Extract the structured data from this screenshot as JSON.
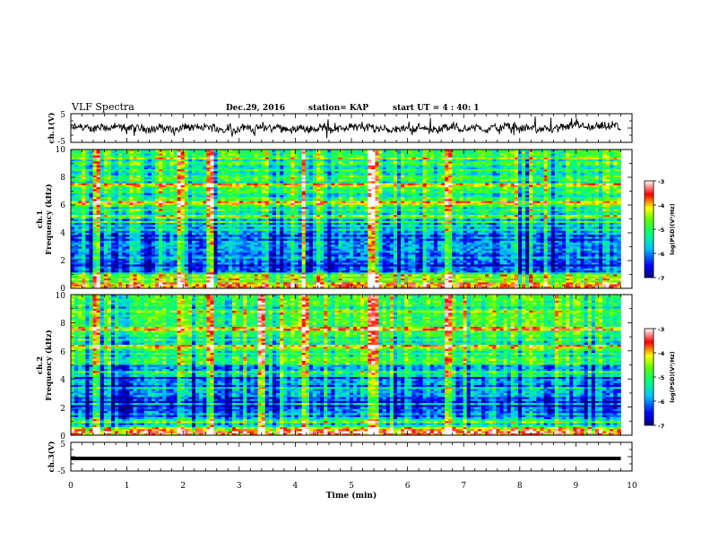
{
  "header": {
    "title": "VLF Spectra",
    "date": "Dec.29, 2016",
    "station": "station= KAP",
    "start": "start  UT =   4 : 40: 1"
  },
  "chart_data": [
    {
      "type": "line",
      "name": "ch1-waveform",
      "ylabel": "ch.1(V)",
      "ylim": [
        -5,
        5
      ],
      "yticks": [
        "5",
        "-5"
      ],
      "xlim": [
        0,
        10
      ],
      "mean": 0,
      "amplitude": 1.5
    },
    {
      "type": "heatmap",
      "name": "ch1-spectrogram",
      "ylabel": "ch.1",
      "ylabel2": "Frequency (kHz)",
      "ylim": [
        0,
        10
      ],
      "yticks": [
        "10",
        "8",
        "6",
        "4",
        "2",
        "0"
      ],
      "xlim": [
        0,
        10
      ],
      "colorbar": {
        "label": "log(PSD)(V²/Hz)",
        "range": [
          -7,
          -3
        ],
        "ticks": [
          "-3",
          "-4",
          "-5",
          "-6",
          "-7"
        ]
      },
      "strong_bursts_min": [
        0.45,
        1.95,
        2.5,
        3.5,
        4.15,
        5.35,
        5.4,
        6.75
      ],
      "bands_khz": [
        0.6,
        0.9,
        2.2,
        4.8,
        6.1,
        7.4
      ]
    },
    {
      "type": "heatmap",
      "name": "ch2-spectrogram",
      "ylabel": "ch.2",
      "ylabel2": "Frequency (kHz)",
      "ylim": [
        0,
        10
      ],
      "yticks": [
        "10",
        "8",
        "6",
        "4",
        "2",
        "0"
      ],
      "xlim": [
        0,
        10
      ],
      "colorbar": {
        "label": "log(PSD)(V²/Hz)",
        "range": [
          -7,
          -3
        ],
        "ticks": [
          "-3",
          "-4",
          "-5",
          "-6",
          "-7"
        ]
      },
      "strong_bursts_min": [
        0.45,
        1.95,
        2.5,
        3.4,
        4.2,
        5.35,
        5.45,
        6.75
      ],
      "bands_khz": [
        0.5,
        1.2,
        4.4,
        6.3,
        7.6
      ]
    },
    {
      "type": "line",
      "name": "ch3-waveform",
      "ylabel": "ch.3(V)",
      "ylim": [
        -5,
        5
      ],
      "yticks": [
        "5",
        "-5"
      ],
      "xlim": [
        0,
        10
      ],
      "mean": 0,
      "amplitude": 0.15
    }
  ],
  "xaxis": {
    "label": "Time (min)",
    "ticks": [
      "0",
      "1",
      "2",
      "3",
      "4",
      "5",
      "6",
      "7",
      "8",
      "9",
      "10"
    ],
    "data_end_min": 9.8
  }
}
